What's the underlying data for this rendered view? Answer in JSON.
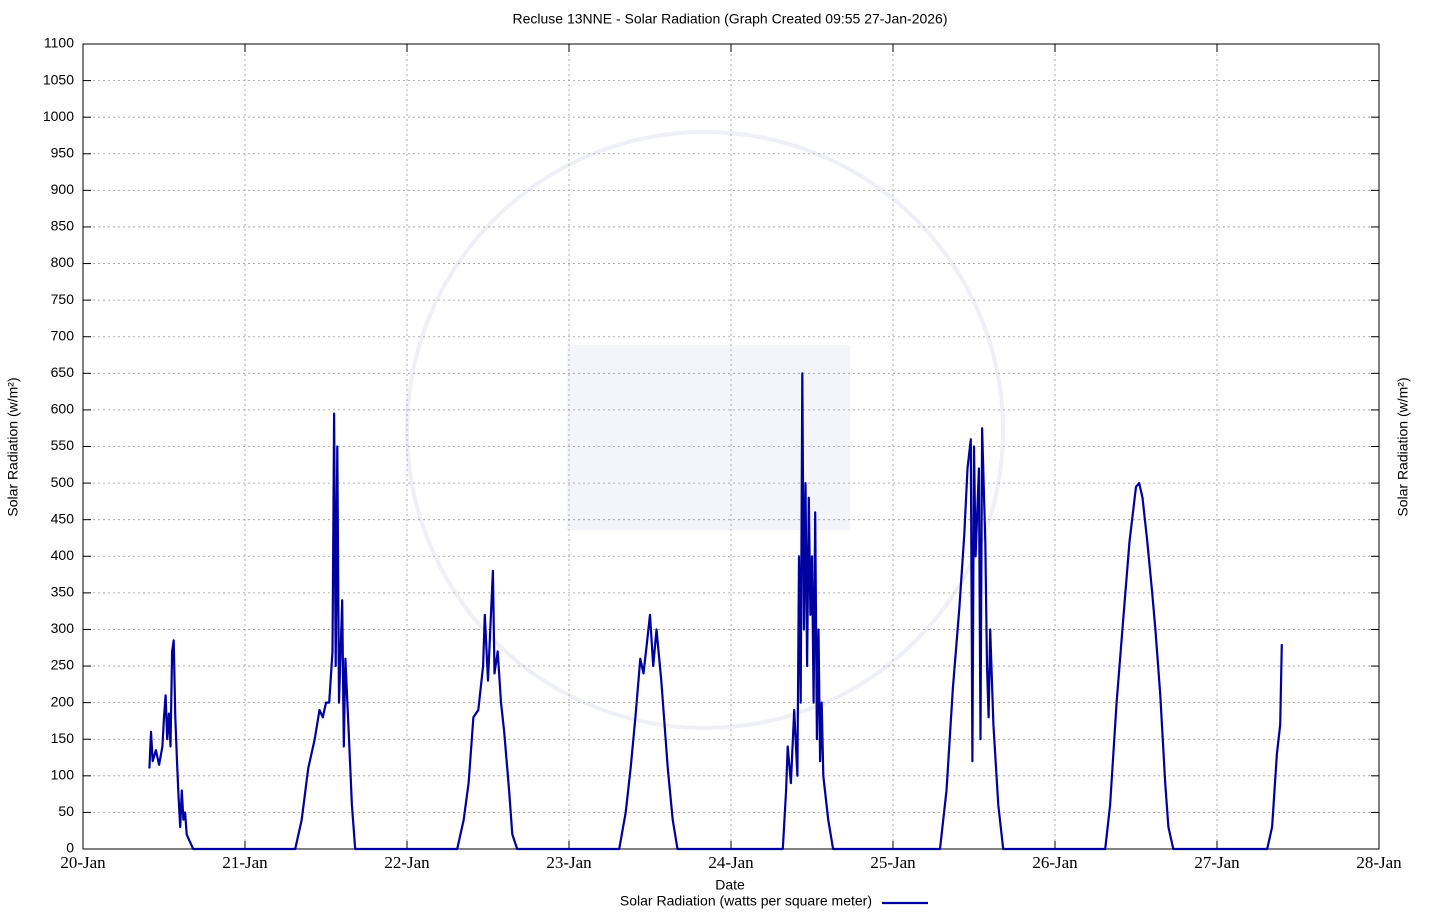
{
  "chart_data": {
    "type": "line",
    "title": "Recluse 13NNE - Solar Radiation (Graph Created 09:55 27-Jan-2026)",
    "x_label": "Date",
    "y_label": "Solar Radiation (w/m²)",
    "x": [
      0.41,
      0.42,
      0.43,
      0.45,
      0.47,
      0.49,
      0.5,
      0.51,
      0.52,
      0.53,
      0.54,
      0.55,
      0.56,
      0.57,
      0.58,
      0.59,
      0.6,
      0.61,
      0.62,
      0.63,
      0.64,
      0.66,
      0.68,
      1.31,
      1.35,
      1.39,
      1.43,
      1.46,
      1.48,
      1.5,
      1.52,
      1.54,
      1.55,
      1.56,
      1.57,
      1.58,
      1.59,
      1.6,
      1.61,
      1.62,
      1.64,
      1.66,
      1.68,
      2.31,
      2.35,
      2.38,
      2.41,
      2.44,
      2.47,
      2.48,
      2.5,
      2.53,
      2.54,
      2.56,
      2.58,
      2.6,
      2.63,
      2.65,
      2.68,
      3.31,
      3.35,
      3.38,
      3.41,
      3.44,
      3.46,
      3.48,
      3.5,
      3.52,
      3.54,
      3.57,
      3.61,
      3.64,
      3.67,
      4.32,
      4.34,
      4.35,
      4.37,
      4.39,
      4.41,
      4.42,
      4.43,
      4.44,
      4.45,
      4.46,
      4.47,
      4.48,
      4.49,
      4.5,
      4.51,
      4.52,
      4.53,
      4.54,
      4.55,
      4.56,
      4.57,
      4.6,
      4.63,
      5.29,
      5.33,
      5.37,
      5.41,
      5.44,
      5.46,
      5.48,
      5.49,
      5.5,
      5.51,
      5.53,
      5.54,
      5.55,
      5.57,
      5.58,
      5.59,
      5.6,
      5.62,
      5.65,
      5.68,
      6.31,
      6.34,
      6.38,
      6.42,
      6.46,
      6.5,
      6.52,
      6.54,
      6.57,
      6.6,
      6.62,
      6.65,
      6.68,
      6.7,
      6.73,
      7.31,
      7.34,
      7.37,
      7.39,
      7.4
    ],
    "series": [
      {
        "name": "Solar Radiation (watts per square meter)",
        "color": "#0000a0",
        "values": [
          110,
          160,
          120,
          135,
          115,
          140,
          180,
          210,
          150,
          185,
          140,
          270,
          285,
          180,
          120,
          70,
          30,
          80,
          40,
          50,
          20,
          10,
          0,
          0,
          40,
          110,
          150,
          190,
          180,
          200,
          200,
          270,
          595,
          250,
          550,
          200,
          270,
          340,
          140,
          260,
          160,
          60,
          0,
          0,
          40,
          90,
          180,
          190,
          250,
          320,
          230,
          380,
          240,
          270,
          200,
          160,
          80,
          20,
          0,
          0,
          50,
          110,
          180,
          260,
          240,
          280,
          320,
          250,
          300,
          230,
          110,
          40,
          0,
          0,
          80,
          140,
          90,
          190,
          100,
          400,
          200,
          650,
          300,
          500,
          250,
          480,
          320,
          400,
          200,
          460,
          150,
          300,
          120,
          200,
          100,
          40,
          0,
          0,
          80,
          220,
          330,
          430,
          520,
          560,
          120,
          550,
          400,
          520,
          150,
          575,
          420,
          250,
          180,
          300,
          170,
          60,
          0,
          0,
          60,
          200,
          310,
          420,
          495,
          500,
          480,
          420,
          350,
          300,
          210,
          90,
          30,
          0,
          0,
          30,
          130,
          170,
          280
        ]
      }
    ],
    "xlim": [
      0,
      8
    ],
    "xticks": [
      {
        "value": 0,
        "label": "20-Jan"
      },
      {
        "value": 1,
        "label": "21-Jan"
      },
      {
        "value": 2,
        "label": "22-Jan"
      },
      {
        "value": 3,
        "label": "23-Jan"
      },
      {
        "value": 4,
        "label": "24-Jan"
      },
      {
        "value": 5,
        "label": "25-Jan"
      },
      {
        "value": 6,
        "label": "26-Jan"
      },
      {
        "value": 7,
        "label": "27-Jan"
      },
      {
        "value": 8,
        "label": "28-Jan"
      }
    ],
    "ylim": [
      0,
      1100
    ],
    "yticks": [
      0,
      50,
      100,
      150,
      200,
      250,
      300,
      350,
      400,
      450,
      500,
      550,
      600,
      650,
      700,
      750,
      800,
      850,
      900,
      950,
      1000,
      1050,
      1100
    ],
    "grid": true
  }
}
